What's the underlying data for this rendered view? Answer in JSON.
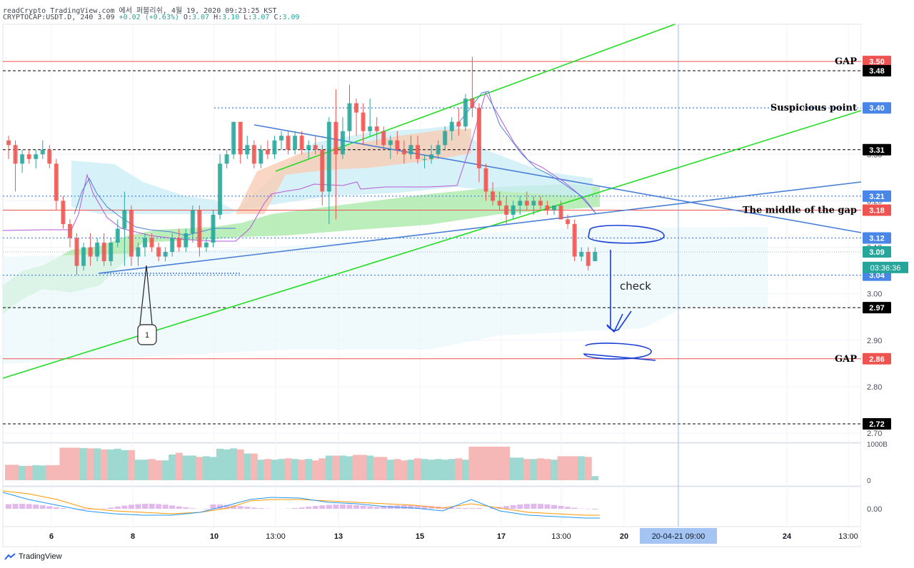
{
  "header": {
    "line1": "readCrypto TradingView.com 에서 퍼블리쉬, 4월 19, 2020 09:23:25 KST",
    "symbol": "CRYPTOCAP:USDT.D, 240",
    "last": "3.09",
    "change": "+0.02 (+0.63%)",
    "o_label": "O:",
    "o_value": "3.07",
    "h_label": "H:",
    "h_value": "3.10",
    "l_label": "L:",
    "l_value": "3.07",
    "c_label": "C:",
    "c_value": "3.09"
  },
  "footer": {
    "brand": "TradingView"
  },
  "chart_data": {
    "type": "candlestick",
    "y_range": [
      2.68,
      3.58
    ],
    "y_ticks": [
      "2.70",
      "2.80",
      "2.90",
      "3.00",
      "3.10",
      "3.20",
      "3.30"
    ],
    "x_ticks": [
      "6",
      "8",
      "10",
      "13:00",
      "13",
      "15",
      "17",
      "13:00",
      "20",
      "20-04-21  09:00",
      "24",
      "13:00"
    ],
    "x_tick_bold": [
      true,
      true,
      true,
      false,
      true,
      true,
      true,
      false,
      true,
      false,
      true,
      false
    ],
    "price_labels": [
      {
        "value": 3.5,
        "text": "3.50",
        "color": "#ef5350"
      },
      {
        "value": 3.48,
        "text": "3.48",
        "color": "#000000"
      },
      {
        "value": 3.4,
        "text": "3.40",
        "color": "#4a86e8"
      },
      {
        "value": 3.31,
        "text": "3.31",
        "color": "#000000"
      },
      {
        "value": 3.21,
        "text": "3.21",
        "color": "#4a86e8"
      },
      {
        "value": 3.18,
        "text": "3.18",
        "color": "#ef5350"
      },
      {
        "value": 3.12,
        "text": "3.12",
        "color": "#4a86e8"
      },
      {
        "value": 3.09,
        "text": "3.09",
        "color": "#26a69a"
      },
      {
        "value": 3.04,
        "text": "3.04",
        "color": "#4a86e8"
      },
      {
        "value": 2.97,
        "text": "2.97",
        "color": "#000000"
      },
      {
        "value": 2.86,
        "text": "2.86",
        "color": "#ef5350"
      },
      {
        "value": 2.72,
        "text": "2.72",
        "color": "#000000"
      }
    ],
    "countdown_label": "03:36:36",
    "annotations": [
      {
        "text": "GAP",
        "value": 3.5
      },
      {
        "text": "Suspicious point",
        "value": 3.4
      },
      {
        "text": "The middle of the gap",
        "value": 3.18
      },
      {
        "text": "GAP",
        "value": 2.86
      }
    ],
    "check_text": "check",
    "marker_text": "1",
    "volume_axis": [
      "1000B",
      "0"
    ],
    "oscillator_axis": [
      "0.00"
    ],
    "candles": [
      [
        3.33,
        3.34,
        3.29,
        3.32
      ],
      [
        3.32,
        3.33,
        3.22,
        3.28
      ],
      [
        3.28,
        3.31,
        3.26,
        3.3
      ],
      [
        3.3,
        3.31,
        3.28,
        3.29
      ],
      [
        3.29,
        3.31,
        3.27,
        3.3
      ],
      [
        3.3,
        3.33,
        3.29,
        3.31
      ],
      [
        3.31,
        3.32,
        3.27,
        3.28
      ],
      [
        3.28,
        3.29,
        3.18,
        3.2
      ],
      [
        3.2,
        3.21,
        3.14,
        3.15
      ],
      [
        3.15,
        3.16,
        3.1,
        3.12
      ],
      [
        3.12,
        3.13,
        3.04,
        3.06
      ],
      [
        3.06,
        3.11,
        3.05,
        3.1
      ],
      [
        3.1,
        3.13,
        3.06,
        3.08
      ],
      [
        3.08,
        3.12,
        3.07,
        3.11
      ],
      [
        3.11,
        3.13,
        3.06,
        3.07
      ],
      [
        3.07,
        3.12,
        3.06,
        3.11
      ],
      [
        3.11,
        3.16,
        3.1,
        3.14
      ],
      [
        3.14,
        3.22,
        3.06,
        3.18
      ],
      [
        3.18,
        3.19,
        3.06,
        3.08
      ],
      [
        3.08,
        3.11,
        3.06,
        3.1
      ],
      [
        3.1,
        3.13,
        3.08,
        3.12
      ],
      [
        3.12,
        3.13,
        3.09,
        3.1
      ],
      [
        3.1,
        3.11,
        3.07,
        3.08
      ],
      [
        3.08,
        3.1,
        3.07,
        3.09
      ],
      [
        3.09,
        3.13,
        3.08,
        3.12
      ],
      [
        3.12,
        3.14,
        3.09,
        3.1
      ],
      [
        3.1,
        3.14,
        3.09,
        3.13
      ],
      [
        3.13,
        3.19,
        3.11,
        3.18
      ],
      [
        3.18,
        3.19,
        3.08,
        3.1
      ],
      [
        3.1,
        3.12,
        3.09,
        3.11
      ],
      [
        3.11,
        3.18,
        3.1,
        3.17
      ],
      [
        3.17,
        3.3,
        3.16,
        3.28
      ],
      [
        3.28,
        3.31,
        3.27,
        3.3
      ],
      [
        3.3,
        3.37,
        3.29,
        3.37
      ],
      [
        3.37,
        3.37,
        3.28,
        3.3
      ],
      [
        3.3,
        3.34,
        3.29,
        3.32
      ],
      [
        3.32,
        3.33,
        3.27,
        3.28
      ],
      [
        3.28,
        3.32,
        3.27,
        3.31
      ],
      [
        3.31,
        3.33,
        3.29,
        3.3
      ],
      [
        3.3,
        3.34,
        3.29,
        3.33
      ],
      [
        3.33,
        3.35,
        3.31,
        3.34
      ],
      [
        3.34,
        3.35,
        3.3,
        3.31
      ],
      [
        3.31,
        3.35,
        3.3,
        3.34
      ],
      [
        3.34,
        3.35,
        3.3,
        3.31
      ],
      [
        3.31,
        3.33,
        3.29,
        3.32
      ],
      [
        3.32,
        3.34,
        3.3,
        3.31
      ],
      [
        3.31,
        3.32,
        3.19,
        3.22
      ],
      [
        3.22,
        3.38,
        3.15,
        3.37
      ],
      [
        3.37,
        3.44,
        3.16,
        3.3
      ],
      [
        3.3,
        3.38,
        3.29,
        3.35
      ],
      [
        3.35,
        3.45,
        3.33,
        3.41
      ],
      [
        3.41,
        3.42,
        3.34,
        3.39
      ],
      [
        3.39,
        3.41,
        3.32,
        3.35
      ],
      [
        3.35,
        3.42,
        3.34,
        3.36
      ],
      [
        3.36,
        3.38,
        3.32,
        3.35
      ],
      [
        3.35,
        3.36,
        3.31,
        3.32
      ],
      [
        3.32,
        3.34,
        3.29,
        3.33
      ],
      [
        3.33,
        3.35,
        3.3,
        3.31
      ],
      [
        3.31,
        3.33,
        3.28,
        3.3
      ],
      [
        3.3,
        3.34,
        3.29,
        3.32
      ],
      [
        3.32,
        3.34,
        3.28,
        3.29
      ],
      [
        3.29,
        3.3,
        3.27,
        3.29
      ],
      [
        3.29,
        3.32,
        3.28,
        3.3
      ],
      [
        3.3,
        3.33,
        3.29,
        3.32
      ],
      [
        3.32,
        3.36,
        3.31,
        3.35
      ],
      [
        3.35,
        3.38,
        3.33,
        3.37
      ],
      [
        3.37,
        3.4,
        3.34,
        3.36
      ],
      [
        3.36,
        3.43,
        3.35,
        3.42
      ],
      [
        3.42,
        3.51,
        3.38,
        3.4
      ],
      [
        3.4,
        3.41,
        3.24,
        3.27
      ],
      [
        3.27,
        3.28,
        3.2,
        3.22
      ],
      [
        3.22,
        3.24,
        3.19,
        3.2
      ],
      [
        3.2,
        3.22,
        3.18,
        3.19
      ],
      [
        3.19,
        3.21,
        3.15,
        3.17
      ],
      [
        3.17,
        3.2,
        3.16,
        3.19
      ],
      [
        3.19,
        3.21,
        3.17,
        3.2
      ],
      [
        3.2,
        3.22,
        3.18,
        3.19
      ],
      [
        3.19,
        3.21,
        3.17,
        3.2
      ],
      [
        3.2,
        3.21,
        3.18,
        3.19
      ],
      [
        3.19,
        3.2,
        3.17,
        3.18
      ],
      [
        3.18,
        3.19,
        3.17,
        3.19
      ],
      [
        3.19,
        3.2,
        3.16,
        3.16
      ],
      [
        3.16,
        3.17,
        3.14,
        3.15
      ],
      [
        3.15,
        3.16,
        3.07,
        3.08
      ],
      [
        3.08,
        3.1,
        3.07,
        3.09
      ],
      [
        3.09,
        3.1,
        3.05,
        3.06
      ],
      [
        3.07,
        3.1,
        3.07,
        3.09
      ]
    ],
    "volume": [
      0.45,
      0.45,
      0.42,
      0.42,
      0.44,
      0.43,
      0.44,
      0.44,
      0.95,
      0.95,
      0.95,
      0.94,
      0.93,
      0.93,
      0.9,
      0.9,
      0.92,
      0.88,
      0.88,
      0.6,
      0.6,
      0.62,
      0.58,
      0.58,
      0.75,
      0.8,
      0.72,
      0.72,
      0.68,
      0.7,
      0.68,
      0.92,
      0.9,
      0.93,
      0.9,
      0.78,
      0.78,
      0.6,
      0.62,
      0.6,
      0.62,
      0.64,
      0.62,
      0.6,
      0.62,
      0.58,
      0.64,
      0.72,
      0.72,
      0.72,
      0.7,
      0.74,
      0.74,
      0.72,
      0.68,
      0.68,
      0.6,
      0.62,
      0.58,
      0.6,
      0.64,
      0.62,
      0.6,
      0.62,
      0.6,
      0.62,
      0.64,
      0.6,
      0.98,
      0.98,
      0.98,
      0.98,
      0.98,
      0.98,
      0.66,
      0.66,
      0.62,
      0.62,
      0.64,
      0.62,
      0.6,
      0.7,
      0.7,
      0.7,
      0.7,
      0.68,
      0.12
    ]
  }
}
